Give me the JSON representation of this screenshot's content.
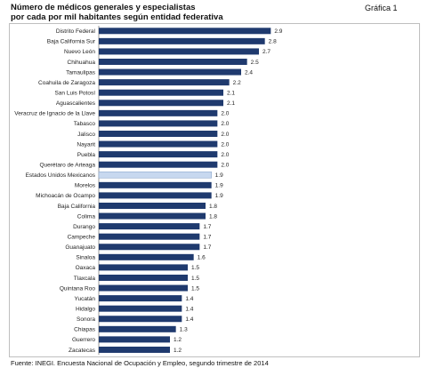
{
  "header": {
    "title_line1": "Número de médicos generales y especialistas",
    "title_line2": "por cada por mil habitantes según entidad federativa",
    "graph_label": "Gráfica 1"
  },
  "footer": {
    "source": "Fuente: INEGI. Encuesta Nacional de  Ocupación y  Empleo, segundo trimestre de 2014"
  },
  "colors": {
    "bar": "#1f3a6e",
    "highlight_bar": "#c7d8ef",
    "frame": "#bfbfbf"
  },
  "chart_data": {
    "type": "bar",
    "orientation": "horizontal",
    "title": "Número de médicos generales y especialistas por cada por mil habitantes según entidad federativa",
    "xlabel": "",
    "ylabel": "",
    "xlim": [
      0,
      3.0
    ],
    "grid": false,
    "legend": "none",
    "highlight": "Estados Unidos Mexicanos",
    "categories": [
      "Distrito Federal",
      "Baja California Sur",
      "Nuevo León",
      "Chihuahua",
      "Tamaulipas",
      "Coahuila de Zaragoza",
      "San Luis Potosí",
      "Aguascalientes",
      "Veracruz de Ignacio de la Llave",
      "Tabasco",
      "Jalisco",
      "Nayarit",
      "Puebla",
      "Querétaro de Arteaga",
      "Estados Unidos Mexicanos",
      "Morelos",
      "Michoacán de Ocampo",
      "Baja California",
      "Colima",
      "Durango",
      "Campeche",
      "Guanajuato",
      "Sinaloa",
      "Oaxaca",
      "Tlaxcala",
      "Quintana Roo",
      "Yucatán",
      "Hidalgo",
      "Sonora",
      "Chiapas",
      "Guerrero",
      "Zacatecas"
    ],
    "values": [
      2.9,
      2.8,
      2.7,
      2.5,
      2.4,
      2.2,
      2.1,
      2.1,
      2.0,
      2.0,
      2.0,
      2.0,
      2.0,
      2.0,
      1.9,
      1.9,
      1.9,
      1.8,
      1.8,
      1.7,
      1.7,
      1.7,
      1.6,
      1.5,
      1.5,
      1.5,
      1.4,
      1.4,
      1.4,
      1.3,
      1.2,
      1.2
    ]
  }
}
